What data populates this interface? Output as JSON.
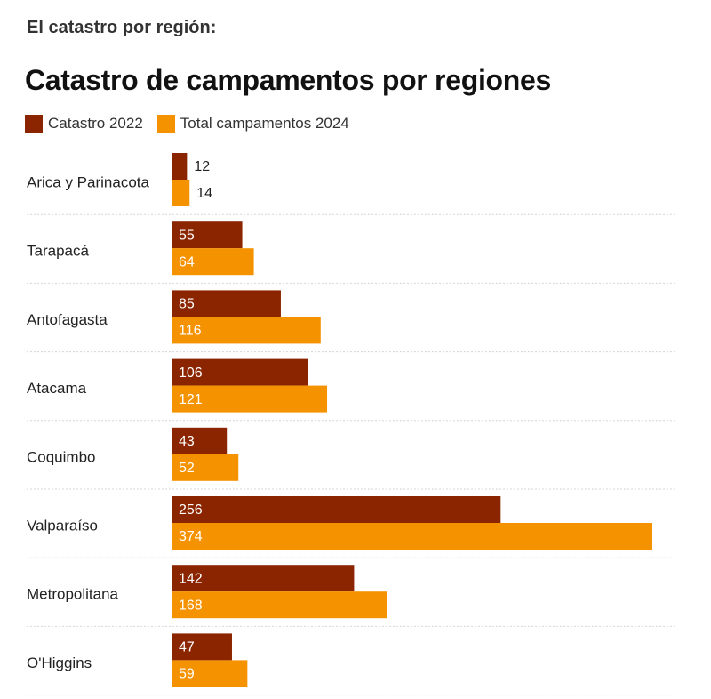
{
  "header": {
    "section_label": "El catastro por región:"
  },
  "colors": {
    "series1": "#8b2500",
    "series2": "#f59200",
    "separator": "#d6d6d6"
  },
  "chart_data": {
    "type": "bar",
    "orientation": "horizontal",
    "title": "Catastro de campamentos por regiones",
    "legend_position": "top-left",
    "categories": [
      "Arica y Parinacota",
      "Tarapacá",
      "Antofagasta",
      "Atacama",
      "Coquimbo",
      "Valparaíso",
      "Metropolitana",
      "O'Higgins"
    ],
    "series": [
      {
        "name": "Catastro 2022",
        "values": [
          12,
          55,
          85,
          106,
          43,
          256,
          142,
          47
        ]
      },
      {
        "name": "Total campamentos 2024",
        "values": [
          14,
          64,
          116,
          121,
          52,
          374,
          168,
          59
        ]
      }
    ],
    "xlim": [
      0,
      374
    ],
    "grid": false
  }
}
